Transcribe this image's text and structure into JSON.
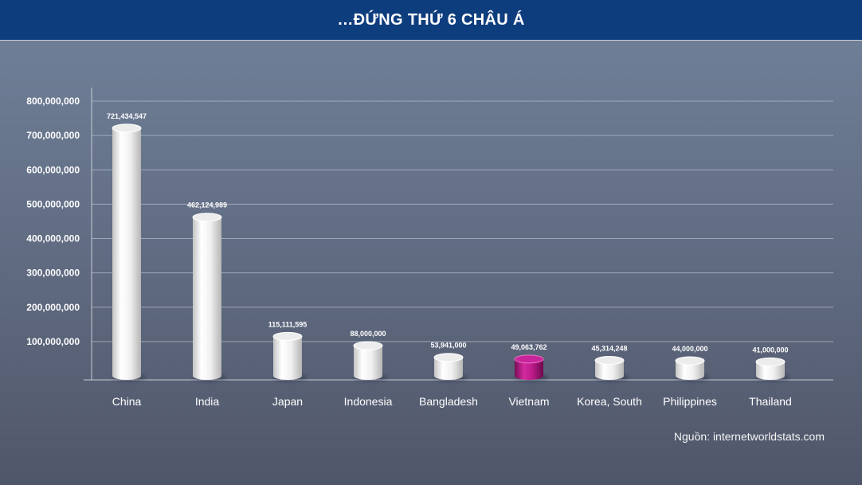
{
  "colors": {
    "header_bg": "#0e3d7e",
    "bar": "#ececec",
    "highlight_bar": "#c9259b"
  },
  "chart_data": {
    "type": "bar",
    "title": "…ĐỨNG THỨ 6 CHÂU Á",
    "xlabel": "",
    "ylabel": "",
    "categories": [
      "China",
      "India",
      "Japan",
      "Indonesia",
      "Bangladesh",
      "Vietnam",
      "Korea, South",
      "Philippines",
      "Thailand"
    ],
    "values": [
      721434547,
      462124989,
      115111595,
      88000000,
      53941000,
      49063762,
      45314248,
      44000000,
      41000000
    ],
    "data_labels": [
      "721,434,547",
      "462,124,989",
      "115,111,595",
      "88,000,000",
      "53,941,000",
      "49,063,762",
      "45,314,248",
      "44,000,000",
      "41,000,000"
    ],
    "yticks": [
      100000000,
      200000000,
      300000000,
      400000000,
      500000000,
      600000000,
      700000000,
      800000000
    ],
    "ytick_labels": [
      "100,000,000",
      "200,000,000",
      "300,000,000",
      "400,000,000",
      "500,000,000",
      "600,000,000",
      "700,000,000",
      "800,000,000"
    ],
    "ylim": [
      0,
      800000000
    ],
    "grid": true,
    "highlight_index": 5
  },
  "footer": {
    "source": "Nguồn: internetworldstats.com"
  }
}
